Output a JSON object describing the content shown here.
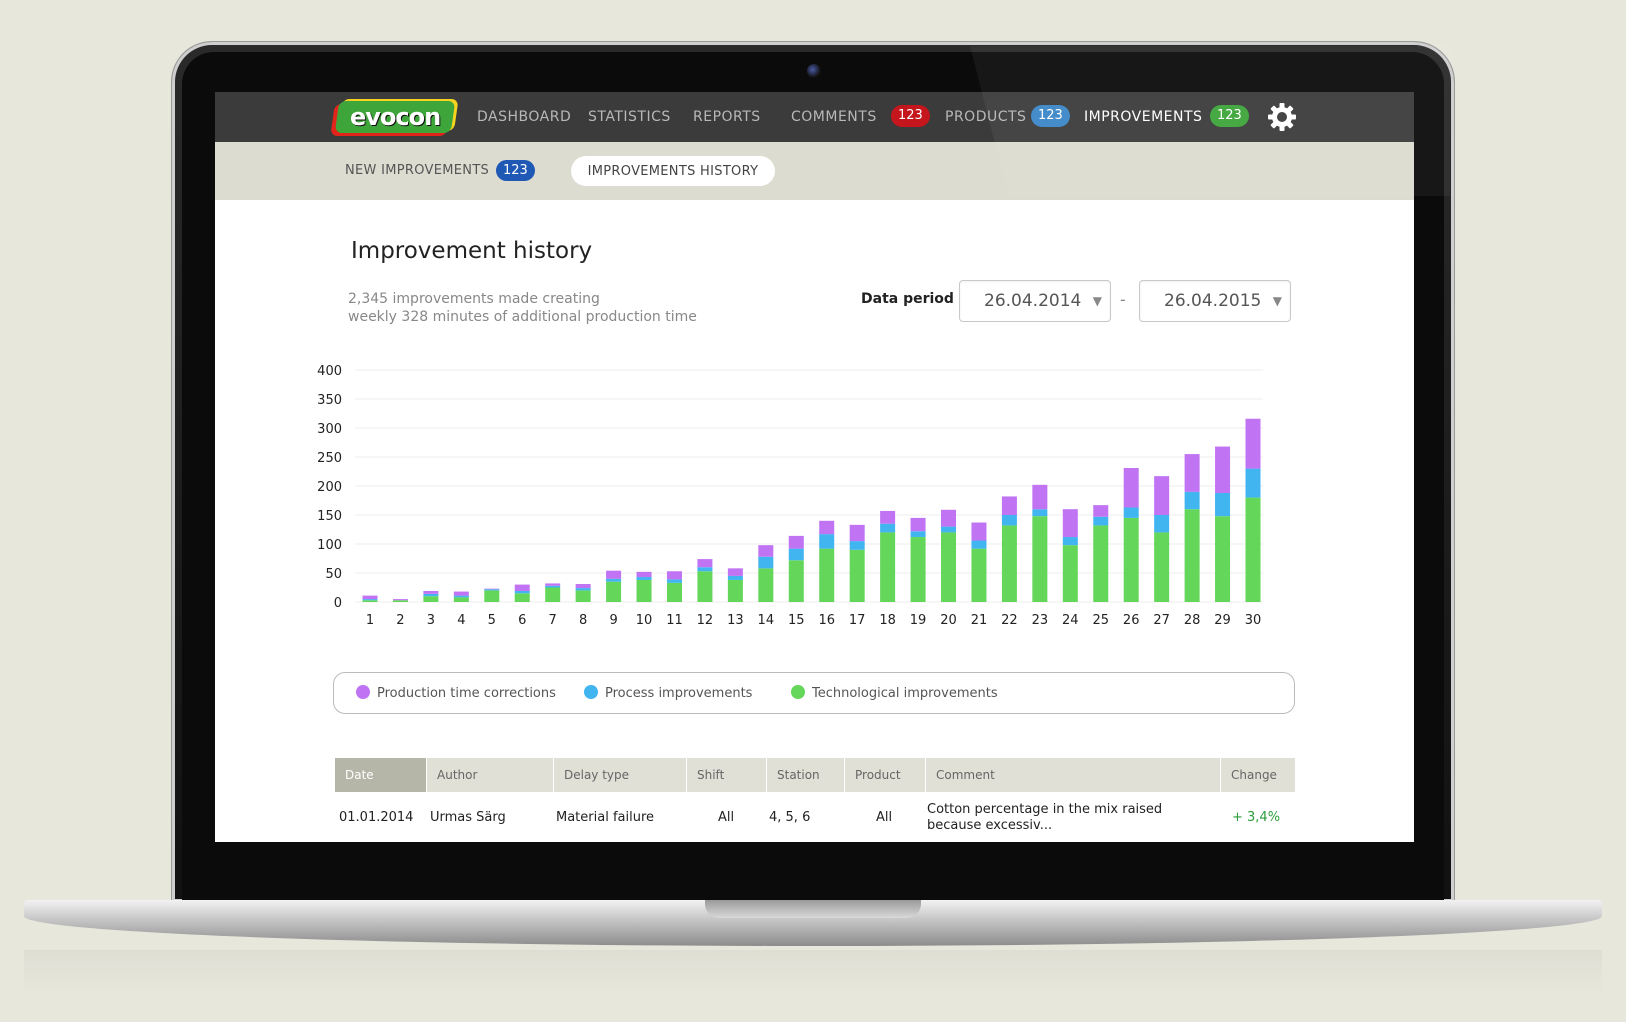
{
  "nav": {
    "logo_text": "evocon",
    "items": [
      {
        "label": "DASHBOARD"
      },
      {
        "label": "STATISTICS"
      },
      {
        "label": "REPORTS"
      },
      {
        "label": "COMMENTS",
        "badge": "123",
        "badge_color": "#c4161c"
      },
      {
        "label": "PRODUCTS",
        "badge": "123",
        "badge_color": "#3c86c9"
      },
      {
        "label": "IMPROVEMENTS",
        "badge": "123",
        "badge_color": "#3ea53a",
        "active": true
      }
    ],
    "settings_icon": "gear-icon"
  },
  "subnav": {
    "new_label": "NEW IMPROVEMENTS",
    "new_badge": "123",
    "history_label": "IMPROVEMENTS HISTORY"
  },
  "page": {
    "title": "Improvement history",
    "summary_line1": "2,345 improvements made creating",
    "summary_line2": "weekly 328 minutes of additional production time",
    "period_label": "Data period",
    "date_from": "26.04.2014",
    "date_separator": "-",
    "date_to": "26.04.2015"
  },
  "chart_data": {
    "type": "bar",
    "stacked": true,
    "categories": [
      "1",
      "2",
      "3",
      "4",
      "5",
      "6",
      "7",
      "8",
      "9",
      "10",
      "11",
      "12",
      "13",
      "14",
      "15",
      "16",
      "17",
      "18",
      "19",
      "20",
      "21",
      "22",
      "23",
      "24",
      "25",
      "26",
      "27",
      "28",
      "29",
      "30"
    ],
    "series": [
      {
        "name": "Technological improvements",
        "color": "#64d65a",
        "values": [
          3,
          3,
          10,
          8,
          20,
          15,
          25,
          20,
          35,
          38,
          33,
          53,
          38,
          58,
          72,
          92,
          90,
          120,
          112,
          120,
          92,
          132,
          148,
          98,
          132,
          145,
          120,
          160,
          148,
          180
        ]
      },
      {
        "name": "Process improvements",
        "color": "#41b5f0",
        "values": [
          2,
          0,
          4,
          3,
          2,
          4,
          3,
          4,
          5,
          5,
          6,
          7,
          7,
          20,
          20,
          25,
          15,
          15,
          10,
          10,
          14,
          18,
          12,
          14,
          15,
          18,
          30,
          30,
          40,
          50
        ]
      },
      {
        "name": "Production time corrections",
        "color": "#c073f3",
        "values": [
          6,
          2,
          5,
          7,
          1,
          11,
          4,
          7,
          14,
          9,
          14,
          14,
          13,
          20,
          22,
          23,
          28,
          22,
          23,
          29,
          31,
          32,
          42,
          48,
          20,
          68,
          67,
          65,
          80,
          86
        ]
      }
    ],
    "yticks": [
      0,
      50,
      100,
      150,
      200,
      250,
      300,
      350,
      400
    ],
    "ylim": [
      0,
      400
    ],
    "grid": true,
    "legend_position": "bottom"
  },
  "table": {
    "headers": [
      "Date",
      "Author",
      "Delay type",
      "Shift",
      "Station",
      "Product",
      "Comment",
      "Change"
    ],
    "rows": [
      {
        "date": "01.01.2014",
        "author": "Urmas Särg",
        "delay_type": "Material failure",
        "shift": "All",
        "station": "4, 5, 6",
        "product": "All",
        "comment": "Cotton percentage in the mix raised because excessiv...",
        "change": "+ 3,4%"
      }
    ]
  }
}
